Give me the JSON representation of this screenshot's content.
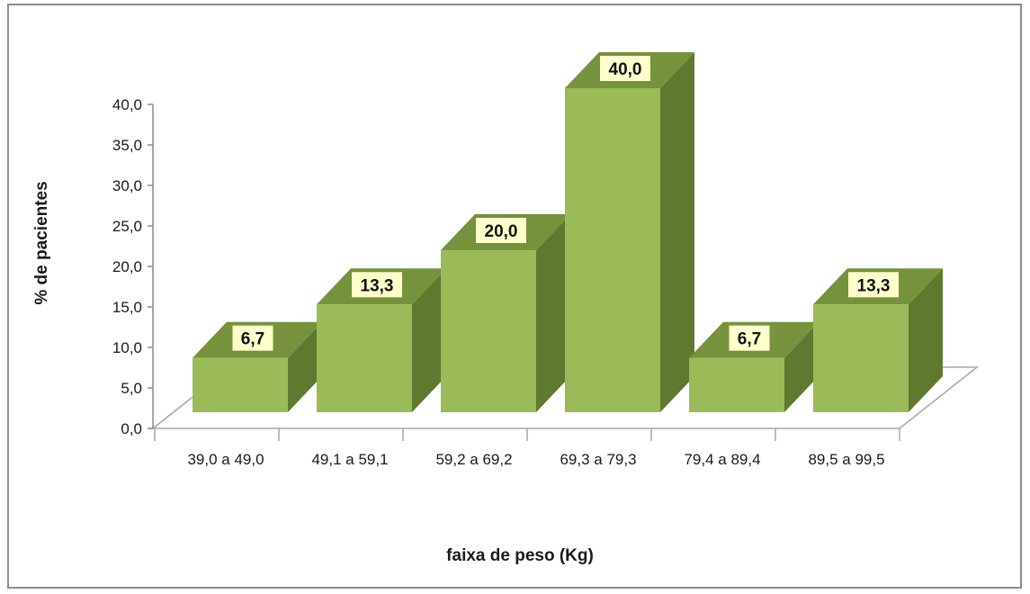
{
  "chart_data": {
    "type": "bar",
    "categories": [
      "39,0 a 49,0",
      "49,1 a 59,1",
      "59,2 a 69,2",
      "69,3 a 79,3",
      "79,4 a 89,4",
      "89,5 a 99,5"
    ],
    "values": [
      6.7,
      13.3,
      20.0,
      40.0,
      6.7,
      13.3
    ],
    "value_labels": [
      "6,7",
      "13,3",
      "20,0",
      "40,0",
      "6,7",
      "13,3"
    ],
    "xlabel": "faixa de peso (Kg)",
    "ylabel": "% de pacientes",
    "ylim": [
      0,
      40
    ],
    "yticks": [
      "0,0",
      "5,0",
      "10,0",
      "15,0",
      "20,0",
      "25,0",
      "30,0",
      "35,0",
      "40,0"
    ],
    "grid": false,
    "legend": "none",
    "style": "3d-column",
    "colors": {
      "bar_front": "#9bbb59",
      "bar_top": "#76923c",
      "bar_side": "#5f7a2f",
      "label_bg": "#ffffcc"
    }
  }
}
